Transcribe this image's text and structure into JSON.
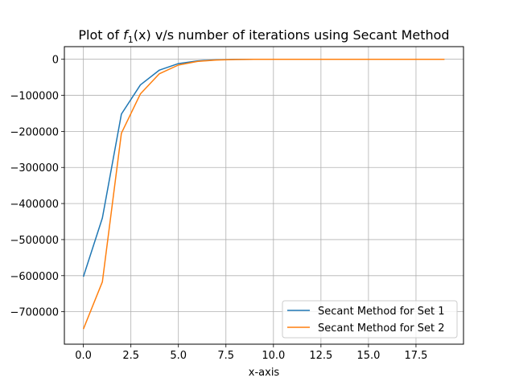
{
  "chart_data": {
    "type": "line",
    "title_prefix": "Plot of ",
    "title_f": "f",
    "title_sub": "1",
    "title_suffix": "(x) v/s number of iterations using Secant Method",
    "xlabel": "x-axis",
    "ylabel": "",
    "xlim": [
      -1,
      20
    ],
    "ylim": [
      -790000,
      35000
    ],
    "xticks": [
      0,
      2.5,
      5,
      7.5,
      10,
      12.5,
      15,
      17.5
    ],
    "xtick_labels": [
      "0.0",
      "2.5",
      "5.0",
      "7.5",
      "10.0",
      "12.5",
      "15.0",
      "17.5"
    ],
    "yticks": [
      0,
      -100000,
      -200000,
      -300000,
      -400000,
      -500000,
      -600000,
      -700000
    ],
    "ytick_labels": [
      "0",
      "−100000",
      "−200000",
      "−300000",
      "−400000",
      "−500000",
      "−600000",
      "−700000"
    ],
    "grid": true,
    "legend_position": "lower-right",
    "series": [
      {
        "name": "Secant Method for Set 1",
        "color": "#1f77b4",
        "x": [
          0,
          1,
          2,
          3,
          4,
          5,
          6,
          7,
          8,
          9,
          10,
          11,
          12,
          13,
          14,
          15,
          16,
          17,
          18
        ],
        "y": [
          -603000,
          -440000,
          -152000,
          -71000,
          -30000,
          -12000,
          -4500,
          -1500,
          -500,
          -150,
          -50,
          -15,
          -5,
          -1,
          0,
          0,
          0,
          0,
          0
        ]
      },
      {
        "name": "Secant Method for Set 2",
        "color": "#ff7f0e",
        "x": [
          0,
          1,
          2,
          3,
          4,
          5,
          6,
          7,
          8,
          9,
          10,
          11,
          12,
          13,
          14,
          15,
          16,
          17,
          18,
          19
        ],
        "y": [
          -748000,
          -617000,
          -205000,
          -96000,
          -40000,
          -16000,
          -6000,
          -2000,
          -700,
          -200,
          -70,
          -20,
          -6,
          -2,
          0,
          0,
          0,
          0,
          0,
          0
        ]
      }
    ]
  }
}
